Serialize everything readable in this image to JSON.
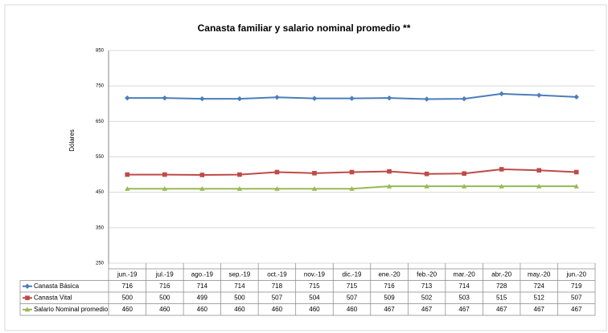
{
  "chart_data": {
    "type": "line",
    "title": "Canasta familiar y salario nominal promedio **",
    "y_label": "Dólares",
    "categories": [
      "jun.-19",
      "jul.-19",
      "ago.-19",
      "sep.-19",
      "oct.-19",
      "nov.-19",
      "dic.-19",
      "ene.-20",
      "feb.-20",
      "mar.-20",
      "abr.-20",
      "may.-20",
      "jun.-20"
    ],
    "series": [
      {
        "name": "Canasta Básica",
        "color": "#4a7ebb",
        "marker": "diamond",
        "values": [
          716,
          716,
          714,
          714,
          718,
          715,
          715,
          716,
          713,
          714,
          728,
          724,
          719
        ]
      },
      {
        "name": "Canasta Vital",
        "color": "#be4b48",
        "marker": "square",
        "values": [
          500,
          500,
          499,
          500,
          507,
          504,
          507,
          509,
          502,
          503,
          515,
          512,
          507
        ]
      },
      {
        "name": "Salario Nominal promedio",
        "color": "#98b954",
        "marker": "triangle",
        "values": [
          460,
          460,
          460,
          460,
          460,
          460,
          460,
          467,
          467,
          467,
          467,
          467,
          467
        ]
      }
    ],
    "ylim": [
      250,
      850
    ],
    "yticks": [
      250,
      350,
      450,
      550,
      650,
      750,
      850
    ],
    "grid": true
  }
}
